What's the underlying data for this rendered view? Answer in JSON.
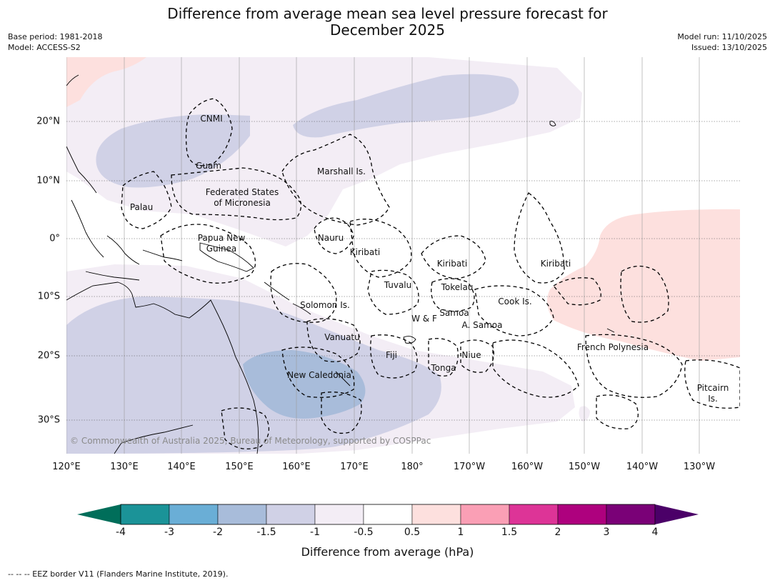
{
  "title_line1": "Difference from average mean sea level pressure forecast for",
  "title_line2": "December 2025",
  "base_period": "Base period: 1981-2018",
  "model": "Model: ACCESS-S2",
  "model_run": "Model run: 11/10/2025",
  "issued": "Issued: 13/10/2025",
  "copyright": "© Commonwealth of Australia 2025, Bureau of Meteorology, supported by COSPPac",
  "footer": "--  --  -- EEZ border V11 (Flanders Marine Institute, 2019).",
  "lon_labels": [
    "120°E",
    "130°E",
    "140°E",
    "150°E",
    "160°E",
    "170°E",
    "180°",
    "170°W",
    "160°W",
    "150°W",
    "140°W",
    "130°W"
  ],
  "lat_labels": [
    "20°N",
    "10°N",
    "0°",
    "10°S",
    "20°S",
    "30°S"
  ],
  "regions": {
    "cnmi": "CNMI",
    "guam": "Guam",
    "marshall": "Marshall Is.",
    "fsm1": "Federated States",
    "fsm2": "of Micronesia",
    "palau": "Palau",
    "png1": "Papua New",
    "png2": "Guinea",
    "nauru": "Nauru",
    "kiribati_w": "Kiribati",
    "kiribati_c": "Kiribati",
    "kiribati_e": "Kiribati",
    "tuvalu": "Tuvalu",
    "tokelau": "Tokelau",
    "cook": "Cook Is.",
    "solomon": "Solomon Is.",
    "samoa": "Samoa",
    "wf": "W & F",
    "asamoa": "A. Samoa",
    "vanuatu": "Vanuatu",
    "fiji": "Fiji",
    "niue": "Niue",
    "tonga": "Tonga",
    "frpoly": "French Polynesia",
    "newcal": "New Caledonia",
    "pitcairn1": "Pitcairn",
    "pitcairn2": "Is."
  },
  "colorbar": {
    "label": "Difference from average (hPa)",
    "ticks": [
      "-4",
      "-3",
      "-2",
      "-1.5",
      "-1",
      "-0.5",
      "0.5",
      "1",
      "1.5",
      "2",
      "3",
      "4"
    ],
    "under_color": "#006e5a",
    "over_color": "#4b0068",
    "colors": [
      "#1b9398",
      "#6aaed6",
      "#a8bcda",
      "#d0d1e6",
      "#f3edf5",
      "#ffffff",
      "#fde0de",
      "#fa9fb5",
      "#dd3497",
      "#ae017e",
      "#7a0177"
    ]
  }
}
